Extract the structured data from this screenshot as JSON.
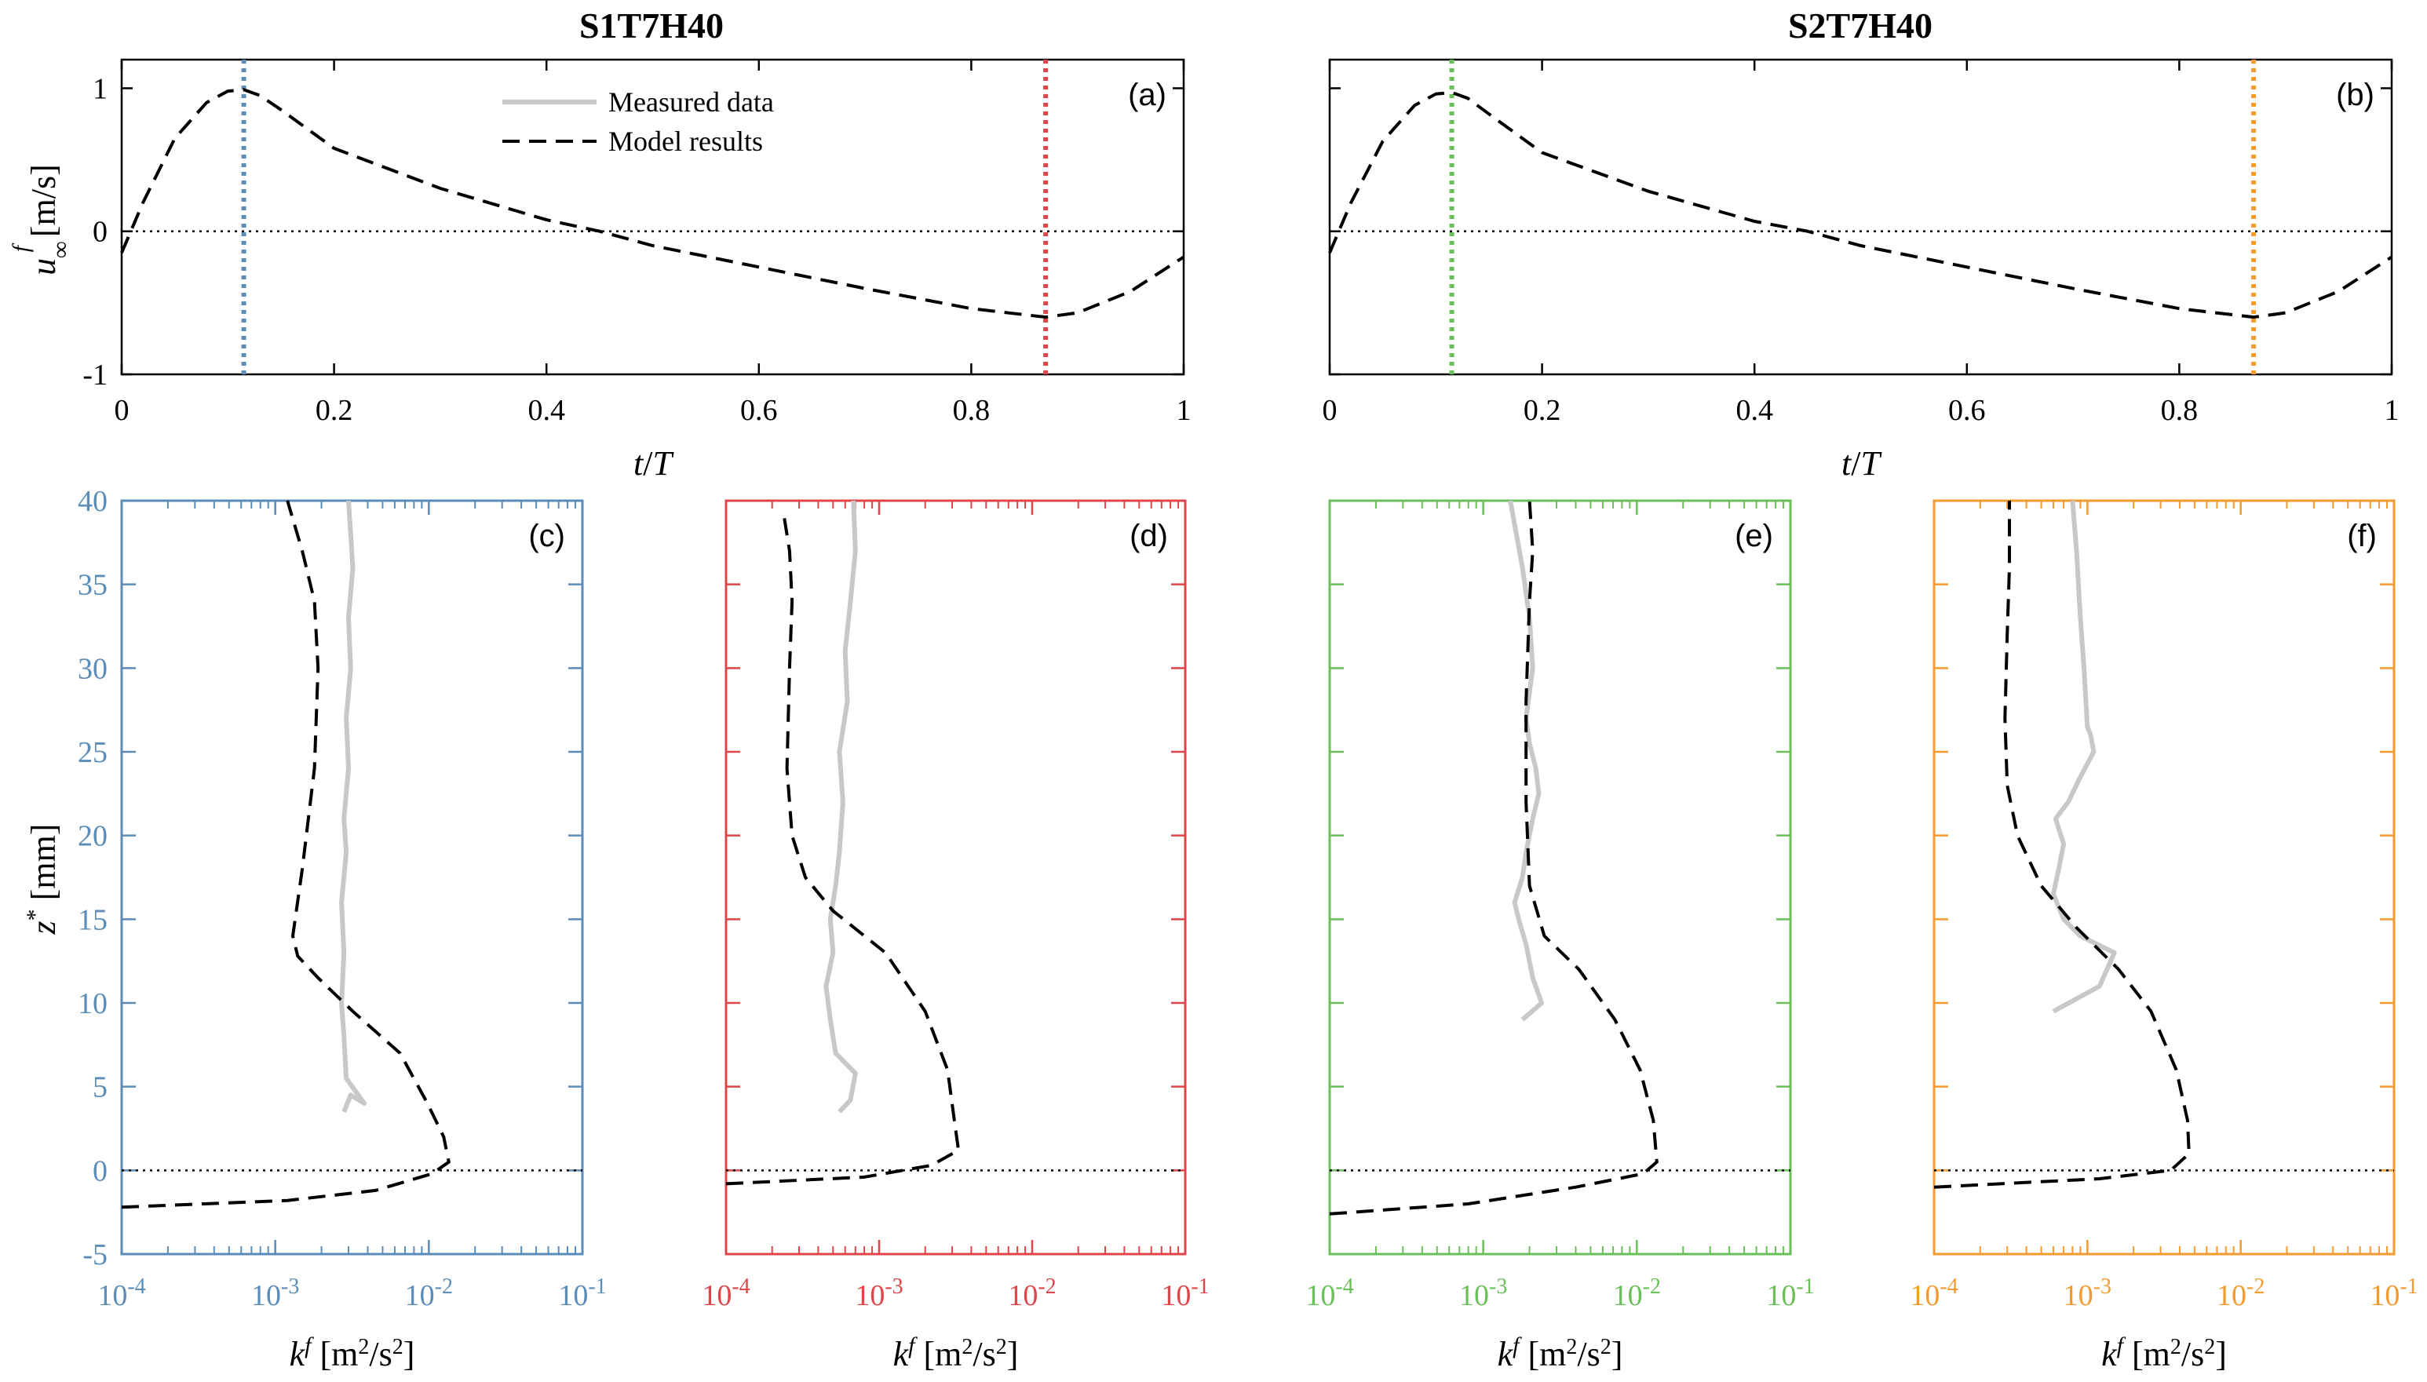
{
  "figure": {
    "titles": [
      "S1T7H40",
      "S2T7H40"
    ],
    "colors": {
      "blue": "#5b8db8",
      "red": "#e0454a",
      "green": "#6bbf59",
      "orange": "#f59a2f",
      "measured": "#c8c8c8",
      "model": "#000000"
    }
  },
  "chart_data": [
    {
      "type": "line",
      "panel": "(a)",
      "title": "S1T7H40",
      "xlabel": "t/T",
      "ylabel": "u∞f [m/s]",
      "xlim": [
        0,
        1
      ],
      "ylim": [
        -1,
        1.2
      ],
      "xticks": [
        "0",
        "0.2",
        "0.4",
        "0.6",
        "0.8",
        "1"
      ],
      "yticks": [
        "-1",
        "0",
        "1"
      ],
      "legend": [
        "Measured data",
        "Model results"
      ],
      "vlines": [
        {
          "x": 0.115,
          "color": "blue"
        },
        {
          "x": 0.87,
          "color": "red"
        }
      ],
      "series": [
        {
          "name": "Model results",
          "x": [
            0,
            0.02,
            0.05,
            0.08,
            0.1,
            0.115,
            0.13,
            0.15,
            0.2,
            0.3,
            0.4,
            0.45,
            0.5,
            0.6,
            0.7,
            0.8,
            0.87,
            0.9,
            0.95,
            1.0
          ],
          "y": [
            -0.15,
            0.2,
            0.65,
            0.9,
            0.98,
            0.99,
            0.95,
            0.85,
            0.58,
            0.3,
            0.08,
            0.0,
            -0.1,
            -0.25,
            -0.4,
            -0.54,
            -0.6,
            -0.57,
            -0.42,
            -0.18
          ]
        }
      ]
    },
    {
      "type": "line",
      "panel": "(b)",
      "title": "S2T7H40",
      "xlabel": "t/T",
      "xlim": [
        0,
        1
      ],
      "ylim": [
        -1,
        1.2
      ],
      "xticks": [
        "0",
        "0.2",
        "0.4",
        "0.6",
        "0.8",
        "1"
      ],
      "vlines": [
        {
          "x": 0.115,
          "color": "green"
        },
        {
          "x": 0.87,
          "color": "orange"
        }
      ],
      "series": [
        {
          "name": "Model results",
          "x": [
            0,
            0.02,
            0.05,
            0.08,
            0.1,
            0.115,
            0.13,
            0.15,
            0.2,
            0.3,
            0.4,
            0.45,
            0.5,
            0.6,
            0.7,
            0.8,
            0.87,
            0.9,
            0.95,
            1.0
          ],
          "y": [
            -0.15,
            0.2,
            0.63,
            0.88,
            0.96,
            0.97,
            0.93,
            0.82,
            0.55,
            0.28,
            0.07,
            0.0,
            -0.1,
            -0.25,
            -0.4,
            -0.54,
            -0.6,
            -0.57,
            -0.42,
            -0.18
          ]
        }
      ]
    },
    {
      "type": "line",
      "panel": "(c)",
      "color": "blue",
      "xscale": "log",
      "xlim": [
        0.0001,
        0.1
      ],
      "ylim": [
        -5,
        40
      ],
      "xticks": [
        "10-4",
        "10-3",
        "10-2",
        "10-1"
      ],
      "yticks": [
        "-5",
        "0",
        "5",
        "10",
        "15",
        "20",
        "25",
        "30",
        "35",
        "40"
      ],
      "xlabel": "kf [m²/s²]",
      "ylabel": "z* [mm]",
      "series": [
        {
          "name": "Measured data",
          "x": [
            0.0028,
            0.0031,
            0.0038,
            0.0029,
            0.0028,
            0.0027,
            0.0028,
            0.0027,
            0.0029,
            0.0028,
            0.003,
            0.0029,
            0.0031,
            0.003,
            0.0032,
            0.0031,
            0.003
          ],
          "y": [
            3.5,
            4.5,
            4.0,
            5.5,
            8,
            10,
            13,
            16,
            19,
            21,
            24,
            27,
            30,
            33,
            36,
            38,
            40
          ]
        },
        {
          "name": "Model results",
          "x": [
            0.0001,
            0.0012,
            0.0045,
            0.0105,
            0.0135,
            0.0125,
            0.0098,
            0.0065,
            0.0032,
            0.0019,
            0.0014,
            0.0013,
            0.0015,
            0.0018,
            0.0019,
            0.0018,
            0.0015,
            0.0012
          ],
          "y": [
            -2.2,
            -1.8,
            -1.2,
            -0.2,
            0.5,
            2,
            4,
            7,
            9.5,
            11.5,
            12.8,
            14,
            18,
            24,
            30,
            34,
            37,
            40
          ]
        }
      ]
    },
    {
      "type": "line",
      "panel": "(d)",
      "color": "red",
      "xscale": "log",
      "xlim": [
        0.0001,
        0.1
      ],
      "ylim": [
        -5,
        40
      ],
      "xticks": [
        "10-4",
        "10-3",
        "10-2",
        "10-1"
      ],
      "xlabel": "kf [m²/s²]",
      "series": [
        {
          "name": "Measured data",
          "x": [
            0.00055,
            0.00065,
            0.0007,
            0.00052,
            0.00048,
            0.00045,
            0.0005,
            0.00048,
            0.00052,
            0.00055,
            0.00058,
            0.00055,
            0.00062,
            0.0006,
            0.00065,
            0.0007,
            0.00068
          ],
          "y": [
            3.5,
            4.2,
            5.8,
            7,
            9,
            11,
            13,
            15,
            17,
            19,
            22,
            25,
            28,
            31,
            34,
            37,
            40
          ]
        },
        {
          "name": "Model results",
          "x": [
            0.0001,
            0.0008,
            0.0022,
            0.0033,
            0.0031,
            0.0028,
            0.002,
            0.0011,
            0.0005,
            0.00033,
            0.00027,
            0.00025,
            0.00026,
            0.00027,
            0.00026,
            0.00024
          ],
          "y": [
            -0.8,
            -0.4,
            0.3,
            1.2,
            3,
            6,
            9.5,
            13,
            15.5,
            17.5,
            20,
            24,
            30,
            34,
            37,
            39
          ]
        }
      ]
    },
    {
      "type": "line",
      "panel": "(e)",
      "color": "green",
      "xscale": "log",
      "xlim": [
        0.0001,
        0.1
      ],
      "ylim": [
        -5,
        40
      ],
      "xticks": [
        "10-4",
        "10-3",
        "10-2",
        "10-1"
      ],
      "xlabel": "kf [m²/s²]",
      "series": [
        {
          "name": "Measured data",
          "x": [
            0.0018,
            0.0024,
            0.0021,
            0.0019,
            0.0017,
            0.0016,
            0.0018,
            0.0019,
            0.0021,
            0.0023,
            0.0022,
            0.002,
            0.0019,
            0.0021,
            0.002,
            0.0018,
            0.0015
          ],
          "y": [
            9,
            10,
            11.5,
            13.5,
            15,
            16,
            17.5,
            19,
            21,
            22.5,
            24,
            25.5,
            27,
            30,
            33,
            36,
            40
          ]
        },
        {
          "name": "Model results",
          "x": [
            0.0001,
            0.0008,
            0.004,
            0.011,
            0.0135,
            0.0128,
            0.0105,
            0.0072,
            0.0042,
            0.0025,
            0.002,
            0.0019,
            0.0019,
            0.002,
            0.0021,
            0.002
          ],
          "y": [
            -2.6,
            -2.0,
            -1.0,
            -0.2,
            0.5,
            3,
            6,
            9,
            12,
            14,
            17,
            22,
            28,
            34,
            37,
            40
          ]
        }
      ]
    },
    {
      "type": "line",
      "panel": "(f)",
      "color": "orange",
      "xscale": "log",
      "xlim": [
        0.0001,
        0.1
      ],
      "ylim": [
        -5,
        40
      ],
      "xticks": [
        "10-4",
        "10-3",
        "10-2",
        "10-1"
      ],
      "xlabel": "kf [m²/s²]",
      "series": [
        {
          "name": "Measured data",
          "x": [
            0.0006,
            0.0012,
            0.0015,
            0.0009,
            0.0007,
            0.0006,
            0.00065,
            0.0007,
            0.00062,
            0.00075,
            0.0009,
            0.0011,
            0.00105,
            0.001,
            0.00095,
            0.0009,
            0.00085,
            0.0008
          ],
          "y": [
            9.5,
            11,
            13,
            14,
            15,
            16.5,
            18,
            19.5,
            21,
            22,
            23.5,
            25,
            26,
            26.5,
            30,
            33,
            37,
            40
          ]
        },
        {
          "name": "Model results",
          "x": [
            0.0001,
            0.0012,
            0.0035,
            0.0046,
            0.0045,
            0.0038,
            0.0026,
            0.0016,
            0.00085,
            0.0005,
            0.00035,
            0.0003,
            0.00029,
            0.0003,
            0.00031,
            0.00031
          ],
          "y": [
            -1,
            -0.5,
            0,
            1,
            3,
            6,
            9.5,
            12,
            14.5,
            17,
            20,
            23,
            27,
            32,
            36,
            40
          ]
        }
      ]
    }
  ]
}
